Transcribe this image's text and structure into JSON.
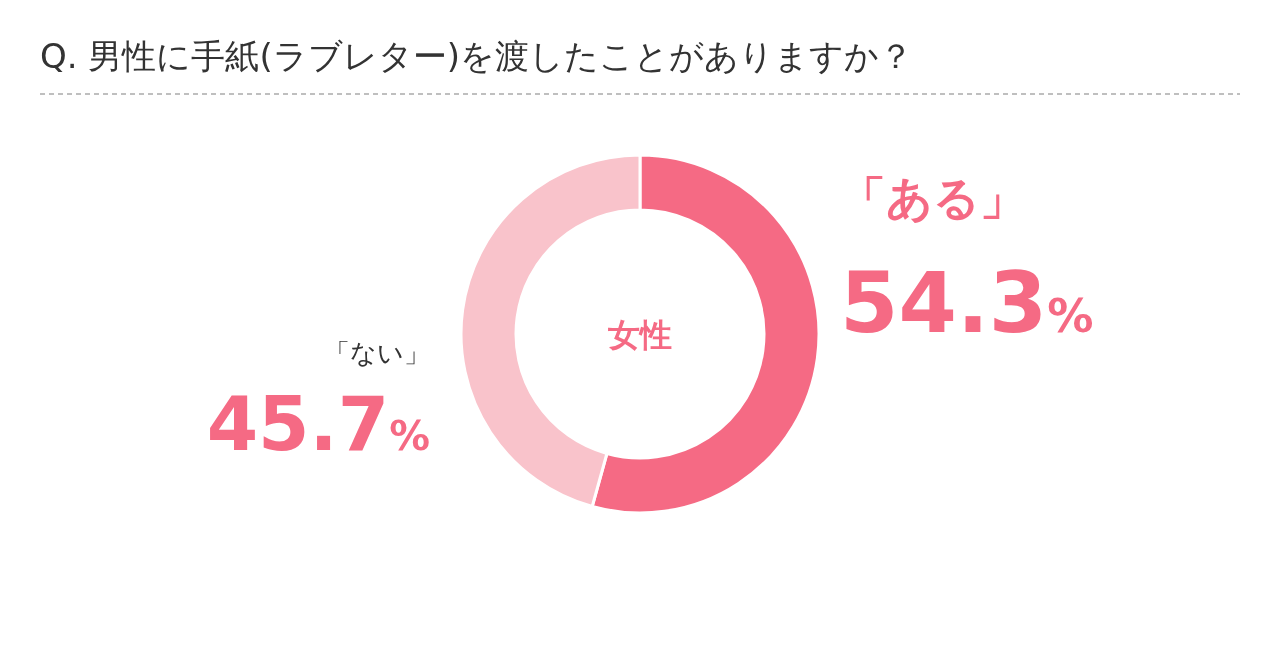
{
  "chart_data": {
    "type": "donut",
    "title": "Q. 男性に手紙(ラブレター)を渡したことがありますか？",
    "categories": [
      "「ある」",
      "「ない」"
    ],
    "values": [
      54.3,
      45.7
    ],
    "colors": [
      "#f56a84",
      "#f9c3cb"
    ],
    "value_labels": [
      "54.3%",
      "45.7%"
    ],
    "annotations": [
      "女性"
    ]
  }
}
